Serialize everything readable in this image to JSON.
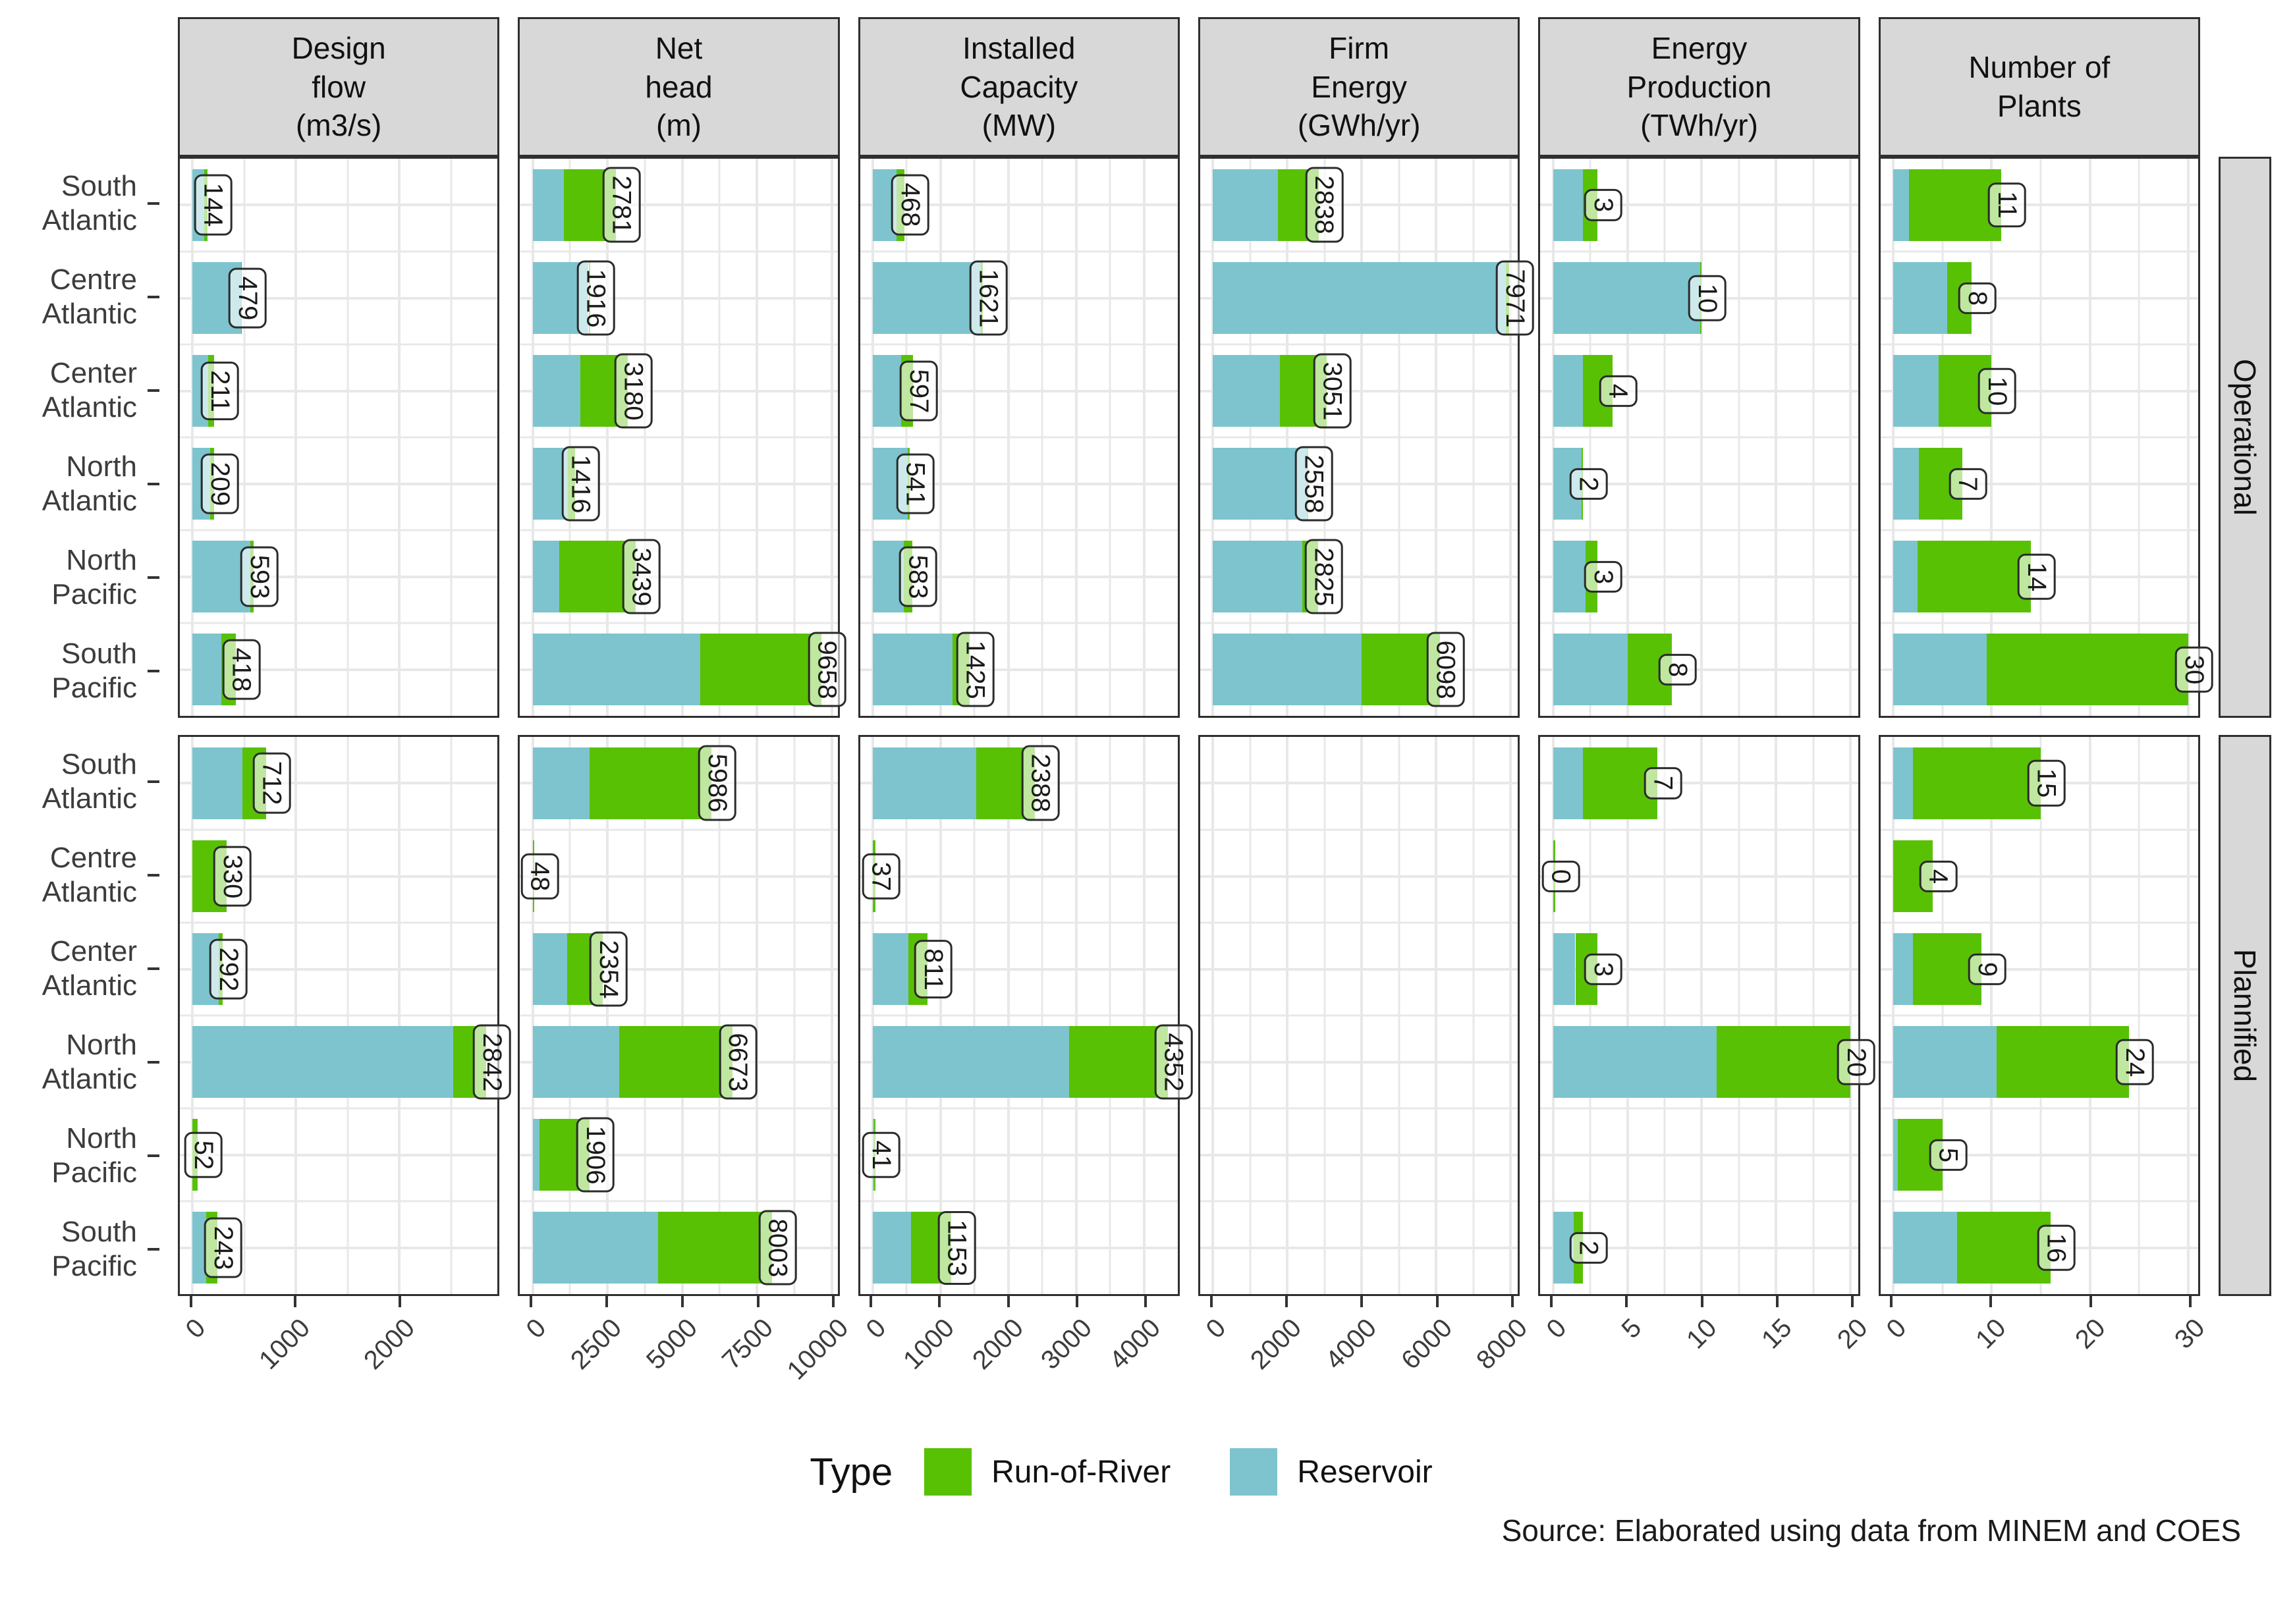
{
  "source_note": "Source: Elaborated using data from MINEM and COES",
  "chart_data": {
    "type": "bar",
    "orientation": "horizontal",
    "stacked": true,
    "grid": "on",
    "legend_position": "bottom",
    "categories": [
      "South Atlantic",
      "Centre Atlantic",
      "Center Atlantic",
      "North Atlantic",
      "North Pacific",
      "South Pacific"
    ],
    "categories_display": [
      "South\nAtlantic",
      "Centre\nAtlantic",
      "Center\nAtlantic",
      "North\nAtlantic",
      "North\nPacific",
      "South\nPacific"
    ],
    "facet_rows": [
      "Operational",
      "Plannified"
    ],
    "legend": {
      "title": "Type",
      "entries": [
        {
          "label": "Run-of-River",
          "color": "#58C104"
        },
        {
          "label": "Reservoir",
          "color": "#7DC4CE"
        }
      ]
    },
    "layout": {
      "pad_pct": 4,
      "bar_height_frac": 0.78
    },
    "facet_cols": [
      {
        "title": "Design\nflow\n(m3/s)",
        "short": "design-flow",
        "ticks": [
          0,
          1000,
          2000
        ],
        "minor_step": 500,
        "axis_max": 2950,
        "rows": {
          "Operational": [
            {
              "label": "144",
              "reservoir": 110,
              "run_of_river": 34
            },
            {
              "label": "479",
              "reservoir": 470,
              "run_of_river": 9
            },
            {
              "label": "211",
              "reservoir": 150,
              "run_of_river": 61
            },
            {
              "label": "209",
              "reservoir": 170,
              "run_of_river": 39
            },
            {
              "label": "593",
              "reservoir": 560,
              "run_of_river": 33
            },
            {
              "label": "418",
              "reservoir": 280,
              "run_of_river": 138
            }
          ],
          "Plannified": [
            {
              "label": "712",
              "reservoir": 480,
              "run_of_river": 232
            },
            {
              "label": "330",
              "reservoir": 0,
              "run_of_river": 330
            },
            {
              "label": "292",
              "reservoir": 250,
              "run_of_river": 42
            },
            {
              "label": "2842",
              "reservoir": 2520,
              "run_of_river": 322
            },
            {
              "label": "52",
              "reservoir": 0,
              "run_of_river": 52
            },
            {
              "label": "243",
              "reservoir": 130,
              "run_of_river": 113
            }
          ]
        }
      },
      {
        "title": "Net\nhead\n(m)",
        "short": "net-head",
        "ticks": [
          0,
          2500,
          5000,
          7500,
          10000
        ],
        "minor_step": 1250,
        "axis_max": 10200,
        "rows": {
          "Operational": [
            {
              "label": "2781",
              "reservoir": 1050,
              "run_of_river": 1731
            },
            {
              "label": "1916",
              "reservoir": 1870,
              "run_of_river": 46
            },
            {
              "label": "3180",
              "reservoir": 1600,
              "run_of_river": 1580
            },
            {
              "label": "1416",
              "reservoir": 1180,
              "run_of_river": 236
            },
            {
              "label": "3439",
              "reservoir": 900,
              "run_of_river": 2539
            },
            {
              "label": "9658",
              "reservoir": 5600,
              "run_of_river": 4058
            }
          ],
          "Plannified": [
            {
              "label": "5986",
              "reservoir": 1900,
              "run_of_river": 4086
            },
            {
              "label": "48",
              "reservoir": 0,
              "run_of_river": 48
            },
            {
              "label": "2354",
              "reservoir": 1150,
              "run_of_river": 1204
            },
            {
              "label": "6673",
              "reservoir": 2900,
              "run_of_river": 3773
            },
            {
              "label": "1906",
              "reservoir": 230,
              "run_of_river": 1676
            },
            {
              "label": "8003",
              "reservoir": 4200,
              "run_of_river": 3803
            }
          ]
        }
      },
      {
        "title": "Installed\nCapacity\n(MW)",
        "short": "installed-capacity",
        "ticks": [
          0,
          1000,
          2000,
          3000,
          4000
        ],
        "minor_step": 500,
        "axis_max": 4500,
        "rows": {
          "Operational": [
            {
              "label": "468",
              "reservoir": 350,
              "run_of_river": 118
            },
            {
              "label": "1621",
              "reservoir": 1590,
              "run_of_river": 31
            },
            {
              "label": "597",
              "reservoir": 420,
              "run_of_river": 177
            },
            {
              "label": "541",
              "reservoir": 520,
              "run_of_river": 21
            },
            {
              "label": "583",
              "reservoir": 460,
              "run_of_river": 123
            },
            {
              "label": "1425",
              "reservoir": 1180,
              "run_of_river": 245
            }
          ],
          "Plannified": [
            {
              "label": "2388",
              "reservoir": 1530,
              "run_of_river": 858
            },
            {
              "label": "37",
              "reservoir": 0,
              "run_of_river": 37
            },
            {
              "label": "811",
              "reservoir": 530,
              "run_of_river": 281
            },
            {
              "label": "4352",
              "reservoir": 2900,
              "run_of_river": 1452
            },
            {
              "label": "41",
              "reservoir": 20,
              "run_of_river": 21
            },
            {
              "label": "1153",
              "reservoir": 560,
              "run_of_river": 593
            }
          ]
        }
      },
      {
        "title": "Firm\nEnergy\n(GWh/yr)",
        "short": "firm-energy",
        "ticks": [
          0,
          2000,
          4000,
          6000,
          8000
        ],
        "minor_step": 1000,
        "axis_max": 8200,
        "rows": {
          "Operational": [
            {
              "label": "2838",
              "reservoir": 1750,
              "run_of_river": 1088
            },
            {
              "label": "7971",
              "reservoir": 7870,
              "run_of_river": 101
            },
            {
              "label": "3051",
              "reservoir": 1800,
              "run_of_river": 1251
            },
            {
              "label": "2558",
              "reservoir": 2540,
              "run_of_river": 18
            },
            {
              "label": "2825",
              "reservoir": 2400,
              "run_of_river": 425
            },
            {
              "label": "6098",
              "reservoir": 4000,
              "run_of_river": 2098
            }
          ],
          "Plannified": [
            null,
            null,
            null,
            null,
            null,
            null
          ]
        }
      },
      {
        "title": "Energy\nProduction\n(TWh/yr)",
        "short": "energy-production",
        "ticks": [
          0,
          5,
          10,
          15,
          20
        ],
        "minor_step": 2.5,
        "axis_max": 20.5,
        "rows": {
          "Operational": [
            {
              "label": "3",
              "reservoir": 2,
              "run_of_river": 1
            },
            {
              "label": "10",
              "reservoir": 9.9,
              "run_of_river": 0.1
            },
            {
              "label": "4",
              "reservoir": 2,
              "run_of_river": 2
            },
            {
              "label": "2",
              "reservoir": 1.9,
              "run_of_river": 0.1
            },
            {
              "label": "3",
              "reservoir": 2.2,
              "run_of_river": 0.8
            },
            {
              "label": "8",
              "reservoir": 5,
              "run_of_river": 3
            }
          ],
          "Plannified": [
            {
              "label": "7",
              "reservoir": 2,
              "run_of_river": 5
            },
            {
              "label": "0",
              "reservoir": 0,
              "run_of_river": 0.15
            },
            {
              "label": "3",
              "reservoir": 1.5,
              "run_of_river": 1.5
            },
            {
              "label": "20",
              "reservoir": 11,
              "run_of_river": 9
            },
            null,
            {
              "label": "2",
              "reservoir": 1.4,
              "run_of_river": 0.6
            }
          ]
        }
      },
      {
        "title": "Number of\nPlants",
        "short": "number-of-plants",
        "ticks": [
          0,
          10,
          20,
          30
        ],
        "minor_step": 5,
        "axis_max": 31,
        "rows": {
          "Operational": [
            {
              "label": "11",
              "reservoir": 1.6,
              "run_of_river": 9.4
            },
            {
              "label": "8",
              "reservoir": 5.5,
              "run_of_river": 2.5
            },
            {
              "label": "10",
              "reservoir": 4.6,
              "run_of_river": 5.4
            },
            {
              "label": "7",
              "reservoir": 2.6,
              "run_of_river": 4.4
            },
            {
              "label": "14",
              "reservoir": 2.5,
              "run_of_river": 11.5
            },
            {
              "label": "30",
              "reservoir": 9.5,
              "run_of_river": 20.5
            }
          ],
          "Plannified": [
            {
              "label": "15",
              "reservoir": 2,
              "run_of_river": 13
            },
            {
              "label": "4",
              "reservoir": 0,
              "run_of_river": 4
            },
            {
              "label": "9",
              "reservoir": 2,
              "run_of_river": 7
            },
            {
              "label": "24",
              "reservoir": 10.5,
              "run_of_river": 13.5
            },
            {
              "label": "5",
              "reservoir": 0.5,
              "run_of_river": 4.5
            },
            {
              "label": "16",
              "reservoir": 6.5,
              "run_of_river": 9.5
            }
          ]
        }
      }
    ]
  }
}
